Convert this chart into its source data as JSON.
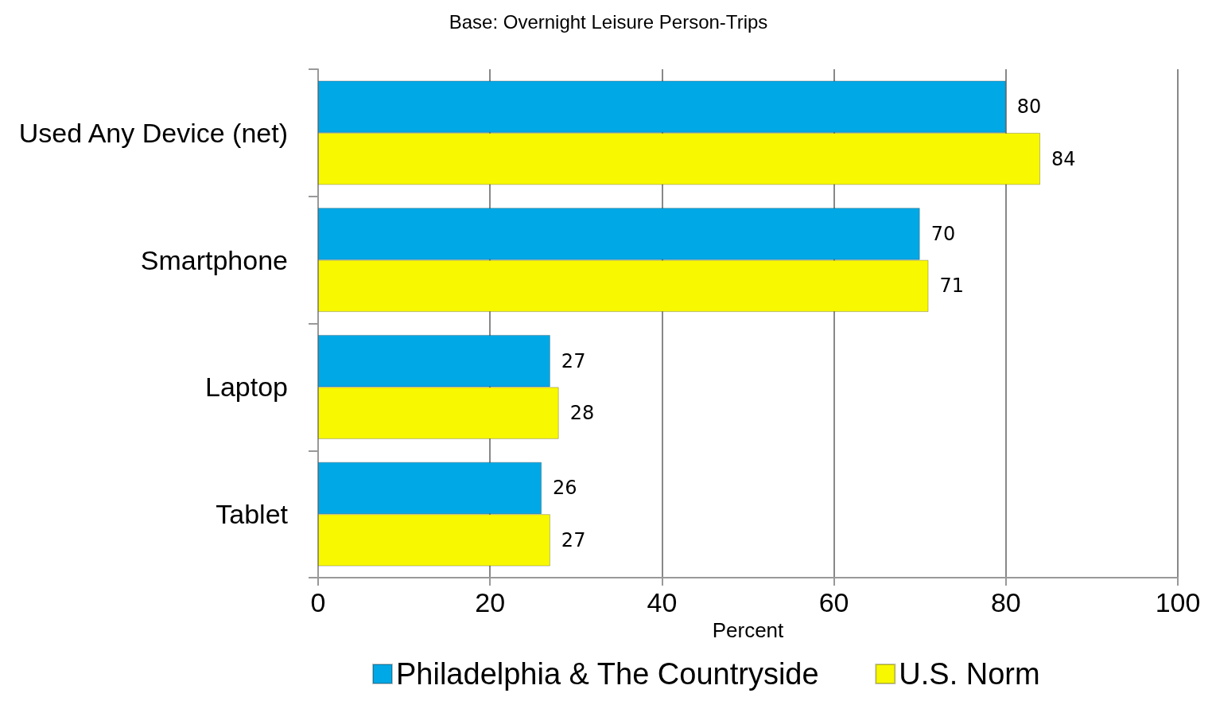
{
  "chart_data": {
    "type": "bar",
    "orientation": "horizontal",
    "title": "Base: Overnight Leisure Person-Trips",
    "xlabel": "Percent",
    "categories": [
      "Used Any Device (net)",
      "Smartphone",
      "Laptop",
      "Tablet"
    ],
    "series": [
      {
        "name": "Philadelphia & The Countryside",
        "color": "#00a8e6",
        "values": [
          80,
          70,
          27,
          26
        ]
      },
      {
        "name": "U.S. Norm",
        "color": "#f8f800",
        "values": [
          84,
          71,
          28,
          27
        ]
      }
    ],
    "xlim": [
      0,
      100
    ],
    "xticks": [
      0,
      20,
      40,
      60,
      80,
      100
    ],
    "grid": "x",
    "legend": "bottom",
    "data_labels": true
  }
}
